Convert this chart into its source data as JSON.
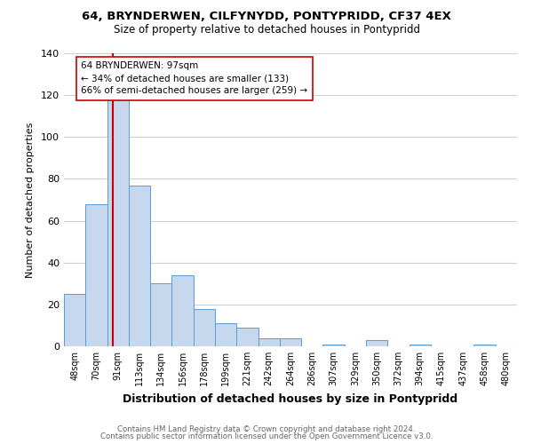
{
  "title_line1": "64, BRYNDERWEN, CILFYNYDD, PONTYPRIDD, CF37 4EX",
  "title_line2": "Size of property relative to detached houses in Pontypridd",
  "xlabel": "Distribution of detached houses by size in Pontypridd",
  "ylabel": "Number of detached properties",
  "categories": [
    "48sqm",
    "70sqm",
    "91sqm",
    "113sqm",
    "134sqm",
    "156sqm",
    "178sqm",
    "199sqm",
    "221sqm",
    "242sqm",
    "264sqm",
    "286sqm",
    "307sqm",
    "329sqm",
    "350sqm",
    "372sqm",
    "394sqm",
    "415sqm",
    "437sqm",
    "458sqm",
    "480sqm"
  ],
  "values": [
    25,
    68,
    118,
    77,
    30,
    34,
    18,
    11,
    9,
    4,
    4,
    0,
    1,
    0,
    3,
    0,
    1,
    0,
    0,
    1,
    0
  ],
  "bar_color": "#c5d8ed",
  "bar_edge_color": "#5b9bd5",
  "property_line_label": "64 BRYNDERWEN: 97sqm",
  "annotation_smaller": "← 34% of detached houses are smaller (133)",
  "annotation_larger": "66% of semi-detached houses are larger (259) →",
  "annotation_box_color": "#ffffff",
  "annotation_box_edge": "#cc0000",
  "grid_color": "#d0d0d0",
  "ylim": [
    0,
    140
  ],
  "yticks": [
    0,
    20,
    40,
    60,
    80,
    100,
    120,
    140
  ],
  "footer_line1": "Contains HM Land Registry data © Crown copyright and database right 2024.",
  "footer_line2": "Contains public sector information licensed under the Open Government Licence v3.0.",
  "background_color": "#ffffff"
}
